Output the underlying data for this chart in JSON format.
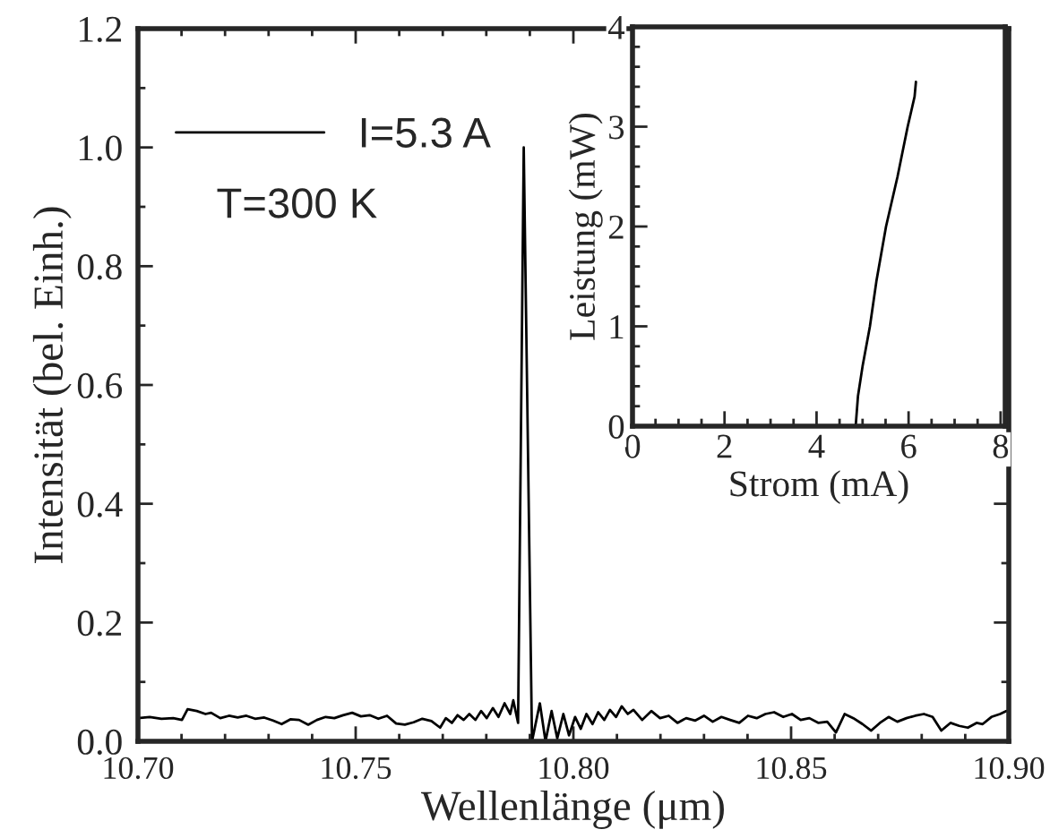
{
  "chart_data": [
    {
      "type": "line",
      "xlabel": "Wellenlänge (μm)",
      "ylabel": "Intensität (bel. Einh.)",
      "xlim": [
        10.7,
        10.9
      ],
      "ylim": [
        0,
        1.2
      ],
      "xticks": [
        {
          "value": 10.7,
          "label": "10.70"
        },
        {
          "value": 10.75,
          "label": "10.75"
        },
        {
          "value": 10.8,
          "label": "10.80"
        },
        {
          "value": 10.85,
          "label": "10.85"
        },
        {
          "value": 10.9,
          "label": "10.90"
        }
      ],
      "yticks": [
        {
          "value": 0,
          "label": "0.0"
        },
        {
          "value": 0.2,
          "label": "0.2"
        },
        {
          "value": 0.4,
          "label": "0.4"
        },
        {
          "value": 0.6,
          "label": "0.6"
        },
        {
          "value": 0.8,
          "label": "0.8"
        },
        {
          "value": 1.0,
          "label": "1.0"
        },
        {
          "value": 1.2,
          "label": "1.2"
        }
      ],
      "legend": "top left",
      "annotations": [
        {
          "text": "T=300 K"
        }
      ],
      "series": [
        {
          "name": "I=5.3 A",
          "color": "#000000",
          "x": [
            10.7,
            10.7027,
            10.7054,
            10.7081,
            10.7101,
            10.7114,
            10.7135,
            10.7155,
            10.7168,
            10.7189,
            10.7209,
            10.7229,
            10.7249,
            10.7269,
            10.729,
            10.731,
            10.733,
            10.735,
            10.737,
            10.7391,
            10.7411,
            10.7431,
            10.7451,
            10.7471,
            10.7492,
            10.7512,
            10.7532,
            10.7552,
            10.7572,
            10.7593,
            10.7613,
            10.7633,
            10.7653,
            10.7674,
            10.7694,
            10.7707,
            10.7721,
            10.7734,
            10.7748,
            10.7761,
            10.7775,
            10.7788,
            10.7801,
            10.7815,
            10.7828,
            10.7842,
            10.7855,
            10.7862,
            10.7873,
            10.7886,
            10.7905,
            10.7923,
            10.7936,
            10.795,
            10.7963,
            10.7977,
            10.799,
            10.8004,
            10.8017,
            10.803,
            10.8044,
            10.8057,
            10.8071,
            10.8084,
            10.8098,
            10.8111,
            10.8125,
            10.8138,
            10.8158,
            10.8179,
            10.8199,
            10.8219,
            10.8239,
            10.8259,
            10.828,
            10.83,
            10.832,
            10.834,
            10.836,
            10.8381,
            10.8401,
            10.8421,
            10.8441,
            10.8461,
            10.8482,
            10.8502,
            10.8522,
            10.8542,
            10.8563,
            10.8583,
            10.8603,
            10.8623,
            10.8643,
            10.8664,
            10.8684,
            10.8704,
            10.8724,
            10.8744,
            10.8765,
            10.8785,
            10.8805,
            10.8825,
            10.8845,
            10.8866,
            10.8886,
            10.8906,
            10.8926,
            10.894,
            10.896,
            10.898,
            10.8994
          ],
          "values": [
            0.039,
            0.041,
            0.038,
            0.039,
            0.036,
            0.054,
            0.051,
            0.046,
            0.048,
            0.039,
            0.043,
            0.04,
            0.043,
            0.038,
            0.04,
            0.035,
            0.029,
            0.037,
            0.036,
            0.028,
            0.036,
            0.041,
            0.039,
            0.044,
            0.048,
            0.042,
            0.044,
            0.038,
            0.043,
            0.03,
            0.028,
            0.032,
            0.038,
            0.034,
            0.023,
            0.039,
            0.031,
            0.044,
            0.036,
            0.046,
            0.036,
            0.051,
            0.039,
            0.056,
            0.041,
            0.064,
            0.046,
            0.069,
            0.031,
            1.0,
            0,
            0.064,
            0,
            0.051,
            0.005,
            0.046,
            0.01,
            0.041,
            0.021,
            0.046,
            0.029,
            0.049,
            0.036,
            0.053,
            0.041,
            0.059,
            0.046,
            0.053,
            0.036,
            0.051,
            0.039,
            0.043,
            0.031,
            0.039,
            0.035,
            0.043,
            0.033,
            0.041,
            0.036,
            0.031,
            0.043,
            0.039,
            0.046,
            0.049,
            0.041,
            0.046,
            0.036,
            0.039,
            0.031,
            0.033,
            0.015,
            0.046,
            0.039,
            0.029,
            0.018,
            0.031,
            0.041,
            0.033,
            0.039,
            0.043,
            0.046,
            0.041,
            0.018,
            0.031,
            0.026,
            0.023,
            0.031,
            0.029,
            0.041,
            0.046,
            0.051
          ]
        }
      ]
    },
    {
      "type": "line",
      "xlabel": "Strom (mA)",
      "ylabel": "Leistung (mW)",
      "xlim": [
        0,
        8.1
      ],
      "ylim": [
        0,
        4
      ],
      "xticks": [
        0,
        2,
        4,
        6,
        8
      ],
      "yticks": [
        0,
        1,
        2,
        3,
        4
      ],
      "series": [
        {
          "color": "#000000",
          "x": [
            4.85,
            4.9,
            5.0,
            5.16,
            5.3,
            5.51,
            5.76,
            5.98,
            6.13,
            6.16
          ],
          "values": [
            0,
            0.3,
            0.6,
            1.0,
            1.45,
            2.0,
            2.5,
            3.0,
            3.3,
            3.45
          ]
        }
      ]
    }
  ]
}
